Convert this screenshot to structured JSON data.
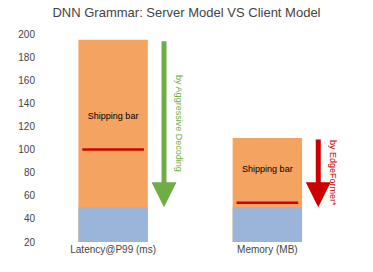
{
  "chart_data": {
    "type": "bar",
    "title": "DNN Grammar: Server Model VS Client Model",
    "categories": [
      "Latency@P99 (ms)",
      "Memory (MB)"
    ],
    "series": [
      {
        "type": "bar",
        "color": "#f4a460",
        "values": [
          195,
          110
        ]
      },
      {
        "type": "bar",
        "color": "#9ab5d9",
        "values": [
          50,
          50
        ]
      },
      {
        "type": "line",
        "name": "Shipping bar",
        "marker": "line-ew",
        "color": "#cc0000",
        "values": [
          100,
          54
        ]
      }
    ],
    "annotations": [
      {
        "text": "by Aggressive Decoding",
        "category": "Latency@P99 (ms)",
        "color": "#70ad47"
      },
      {
        "text": "by EdgeFormer*",
        "category": "Memory (MB)",
        "color": "#cc0000"
      }
    ],
    "ylim": [
      20,
      200
    ],
    "yticks": [
      20,
      40,
      60,
      80,
      100,
      120,
      140,
      160,
      180,
      200
    ],
    "grid": false
  }
}
